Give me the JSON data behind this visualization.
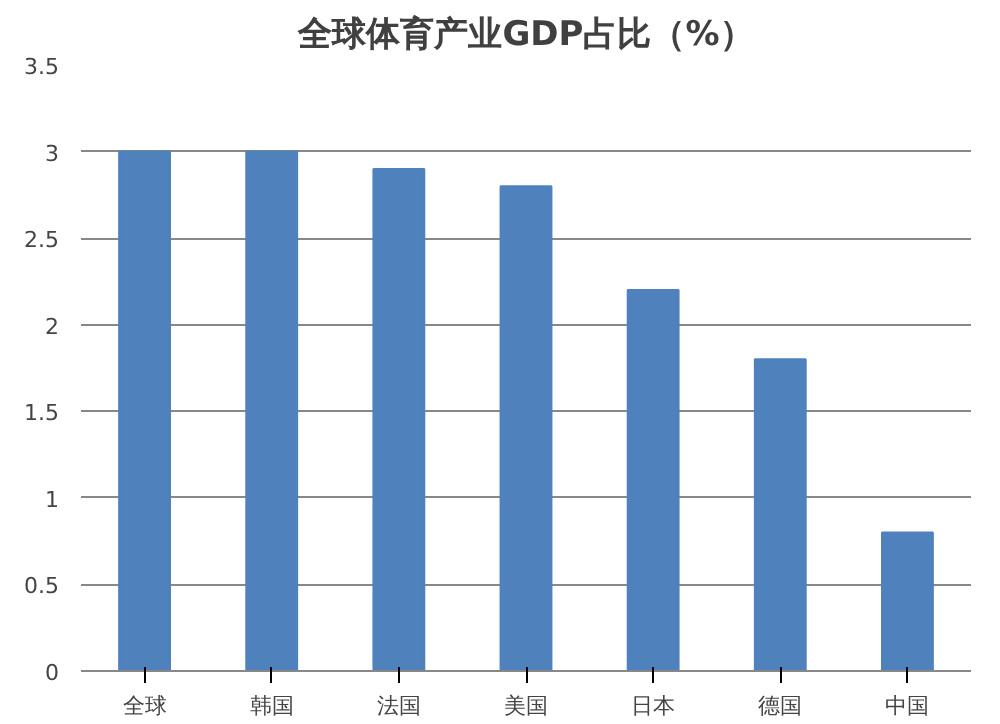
{
  "chart_data": {
    "type": "bar",
    "title": "全球体育产业GDP占比（%）",
    "categories": [
      "全球",
      "韩国",
      "法国",
      "美国",
      "日本",
      "德国",
      "中国"
    ],
    "values": [
      3,
      3,
      2.9,
      2.8,
      2.2,
      1.8,
      0.8
    ],
    "color": "#4f81bd",
    "ylim": [
      0,
      3.5
    ],
    "yticks": [
      0,
      0.5,
      1,
      1.5,
      2,
      2.5,
      3,
      3.5
    ],
    "grid": "y"
  }
}
